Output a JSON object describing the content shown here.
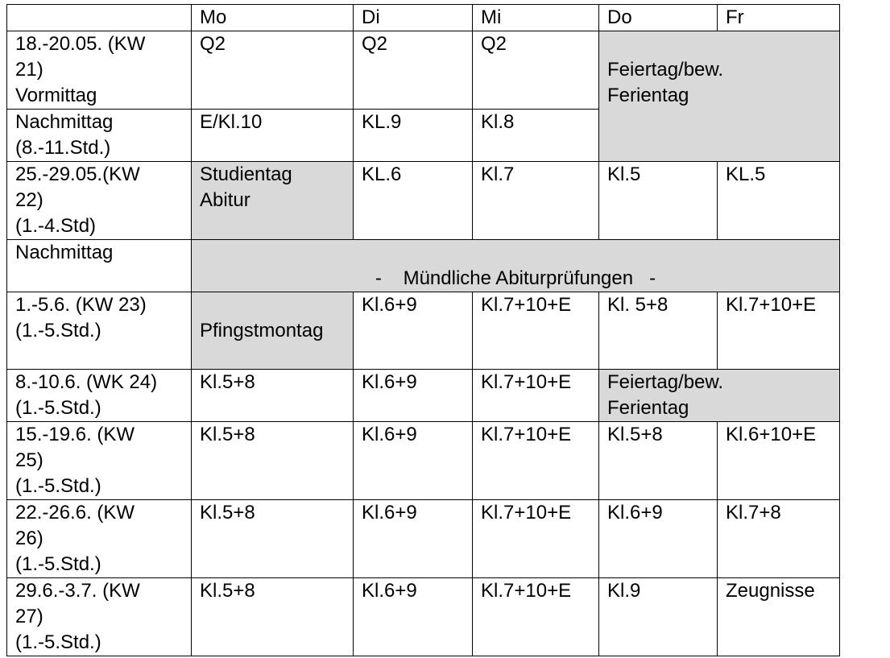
{
  "header": [
    "",
    "Mo",
    "Di",
    "Mi",
    "Do",
    "Fr"
  ],
  "rows": [
    {
      "label": "18.-20.05. (KW\n21)\nVormittag",
      "cells": [
        "Q2",
        "Q2",
        "Q2",
        "Feiertag/bew.\nFerientag"
      ]
    },
    {
      "label": "Nachmittag\n(8.-11.Std.)",
      "cells": [
        "E/Kl.10",
        "KL.9",
        "Kl.8"
      ]
    },
    {
      "label": "25.-29.05.(KW\n22)\n(1.-4.Std)",
      "cells": [
        "Studientag\nAbitur",
        "KL.6",
        "Kl.7",
        "Kl.5",
        "KL.5"
      ]
    },
    {
      "label": "Nachmittag",
      "cells": [
        "-    Mündliche Abiturprüfungen   -"
      ]
    },
    {
      "label": "1.-5.6. (KW 23)\n(1.-5.Std.)",
      "cells": [
        "Pfingstmontag",
        "Kl.6+9",
        "Kl.7+10+E",
        "Kl. 5+8",
        "Kl.7+10+E"
      ]
    },
    {
      "label": "8.-10.6. (WK 24)\n(1.-5.Std.)",
      "cells": [
        "Kl.5+8",
        "Kl.6+9",
        "Kl.7+10+E",
        "Feiertag/bew.\nFerientag"
      ]
    },
    {
      "label": "15.-19.6. (KW\n25)\n(1.-5.Std.)",
      "cells": [
        "Kl.5+8",
        "Kl.6+9",
        "Kl.7+10+E",
        "Kl.5+8",
        "Kl.6+10+E"
      ]
    },
    {
      "label": "22.-26.6. (KW\n26)\n(1.-5.Std.)",
      "cells": [
        "Kl.5+8",
        "Kl.6+9",
        "Kl.7+10+E",
        "Kl.6+9",
        "Kl.7+8"
      ]
    },
    {
      "label": "29.6.-3.7. (KW\n27)\n(1.-5.Std.)",
      "cells": [
        "Kl.5+8",
        "Kl.6+9",
        "Kl.7+10+E",
        "Kl.9",
        "Zeugnisse"
      ]
    }
  ],
  "colors": {
    "holiday_fill": "#d9d9d9",
    "border": "#000000"
  }
}
